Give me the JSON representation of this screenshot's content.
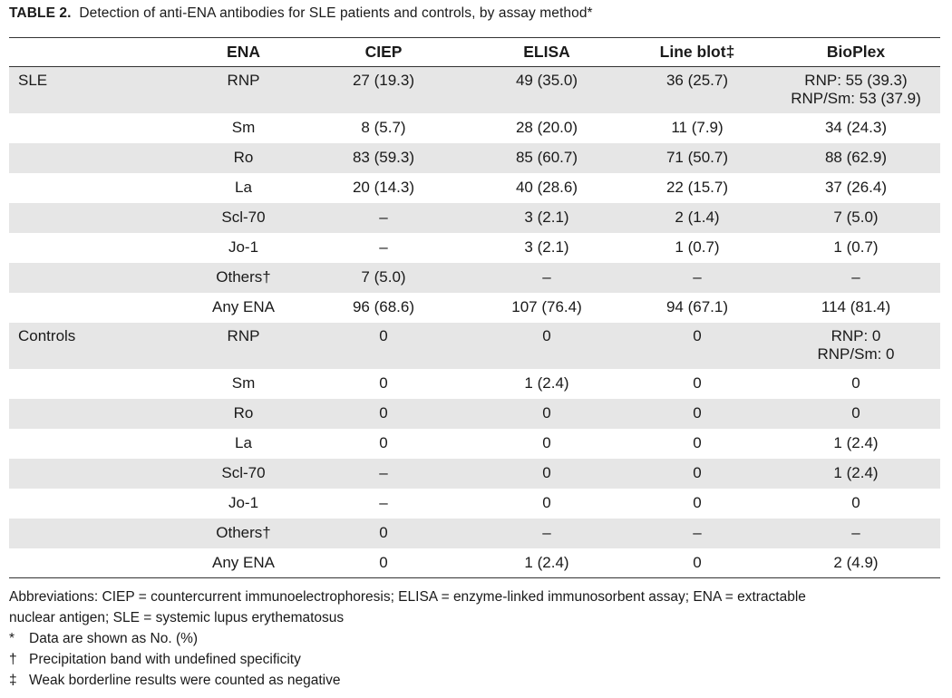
{
  "caption": {
    "label": "TABLE 2.",
    "text": "Detection of anti-ENA antibodies for SLE patients and controls, by assay method*"
  },
  "table": {
    "headers": [
      "",
      "ENA",
      "CIEP",
      "ELISA",
      "Line blot‡",
      "BioPlex"
    ],
    "rows": [
      {
        "group": "SLE",
        "ena": "RNP",
        "ciep": "27 (19.3)",
        "elisa": "49 (35.0)",
        "line": "36 (25.7)",
        "bio": "RNP: 55 (39.3)",
        "bio2": "RNP/Sm: 53 (37.9)"
      },
      {
        "group": "",
        "ena": "Sm",
        "ciep": "8 (5.7)",
        "elisa": "28 (20.0)",
        "line": "11 (7.9)",
        "bio": "34 (24.3)"
      },
      {
        "group": "",
        "ena": "Ro",
        "ciep": "83 (59.3)",
        "elisa": "85 (60.7)",
        "line": "71 (50.7)",
        "bio": "88 (62.9)"
      },
      {
        "group": "",
        "ena": "La",
        "ciep": "20 (14.3)",
        "elisa": "40 (28.6)",
        "line": "22 (15.7)",
        "bio": "37 (26.4)"
      },
      {
        "group": "",
        "ena": "Scl-70",
        "ciep": "–",
        "elisa": "3 (2.1)",
        "line": "2 (1.4)",
        "bio": "7 (5.0)"
      },
      {
        "group": "",
        "ena": "Jo-1",
        "ciep": "–",
        "elisa": "3 (2.1)",
        "line": "1 (0.7)",
        "bio": "1 (0.7)"
      },
      {
        "group": "",
        "ena": "Others†",
        "ciep": "7 (5.0)",
        "elisa": "–",
        "line": "–",
        "bio": "–"
      },
      {
        "group": "",
        "ena": "Any ENA",
        "ciep": "96 (68.6)",
        "elisa": "107 (76.4)",
        "line": "94 (67.1)",
        "bio": "114 (81.4)"
      },
      {
        "group": "Controls",
        "ena": "RNP",
        "ciep": "0",
        "elisa": "0",
        "line": "0",
        "bio": "RNP: 0",
        "bio2": "RNP/Sm: 0"
      },
      {
        "group": "",
        "ena": "Sm",
        "ciep": "0",
        "elisa": "1 (2.4)",
        "line": "0",
        "bio": "0"
      },
      {
        "group": "",
        "ena": "Ro",
        "ciep": "0",
        "elisa": "0",
        "line": "0",
        "bio": "0"
      },
      {
        "group": "",
        "ena": "La",
        "ciep": "0",
        "elisa": "0",
        "line": "0",
        "bio": "1 (2.4)"
      },
      {
        "group": "",
        "ena": "Scl-70",
        "ciep": "–",
        "elisa": "0",
        "line": "0",
        "bio": "1 (2.4)"
      },
      {
        "group": "",
        "ena": "Jo-1",
        "ciep": "–",
        "elisa": "0",
        "line": "0",
        "bio": "0"
      },
      {
        "group": "",
        "ena": "Others†",
        "ciep": "0",
        "elisa": "–",
        "line": "–",
        "bio": "–"
      },
      {
        "group": "",
        "ena": "Any ENA",
        "ciep": "0",
        "elisa": "1 (2.4)",
        "line": "0",
        "bio": "2 (4.9)"
      }
    ]
  },
  "footnotes": {
    "abbreviations_line1": "Abbreviations: CIEP = countercurrent immunoelectrophoresis; ELISA = enzyme-linked immunosorbent assay; ENA = extractable",
    "abbreviations_line2": "nuclear antigen; SLE = systemic lupus erythematosus",
    "notes": [
      {
        "mark": "*",
        "text": "Data are shown as No. (%)"
      },
      {
        "mark": "†",
        "text": "Precipitation band with undefined specificity"
      },
      {
        "mark": "‡",
        "text": "Weak borderline results were counted as negative"
      }
    ]
  }
}
